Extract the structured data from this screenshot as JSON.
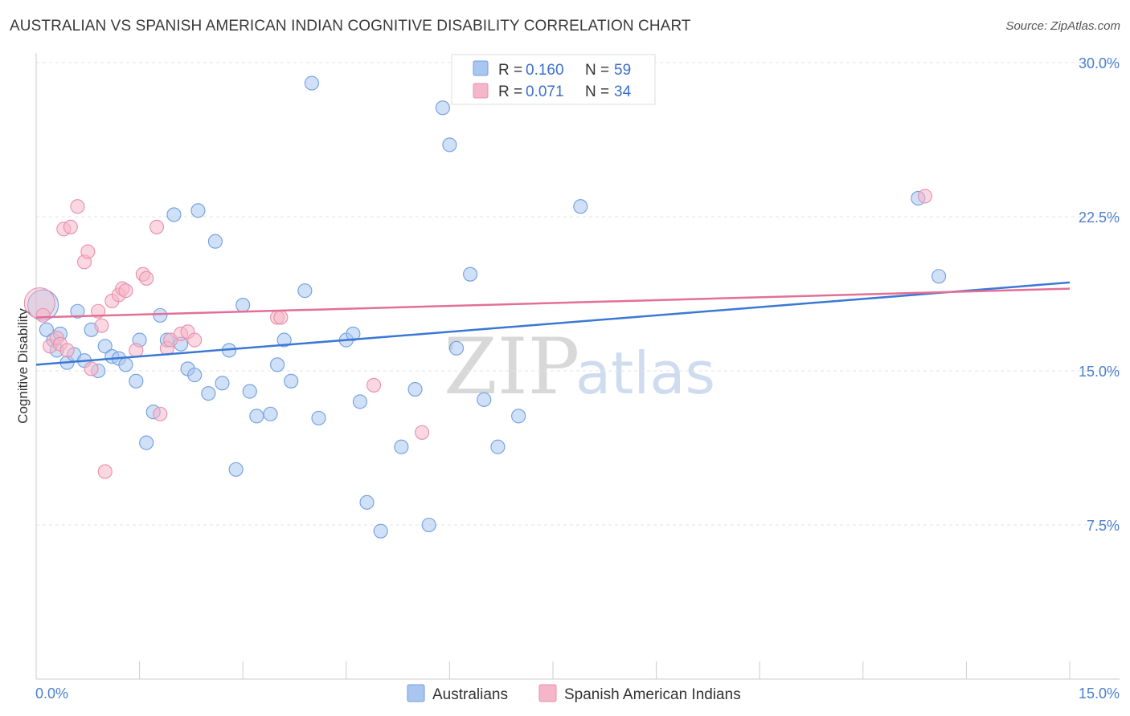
{
  "title": "AUSTRALIAN VS SPANISH AMERICAN INDIAN COGNITIVE DISABILITY CORRELATION CHART",
  "source": "Source: ZipAtlas.com",
  "watermark": {
    "zip": "ZIP",
    "atlas": "atlas"
  },
  "legend": {
    "rows": [
      {
        "r_label": "R = ",
        "r_value": "0.160",
        "n_label": "N = ",
        "n_value": "59",
        "color": "#a9c6f0"
      },
      {
        "r_label": "R = ",
        "r_value": "0.071",
        "n_label": "N = ",
        "n_value": "34",
        "color": "#f5b6c9"
      }
    ]
  },
  "bottom_legend": [
    "Australians",
    "Spanish American Indians"
  ],
  "chart_data": {
    "type": "scatter",
    "title": "AUSTRALIAN VS SPANISH AMERICAN INDIAN COGNITIVE DISABILITY CORRELATION CHART",
    "xlabel": "",
    "ylabel": "Cognitive Disability",
    "xlim": [
      0,
      15
    ],
    "ylim": [
      0,
      30
    ],
    "x_tick_labels": [
      "0.0%",
      "15.0%"
    ],
    "y_ticks": [
      7.5,
      15.0,
      22.5,
      30.0
    ],
    "y_tick_labels": [
      "7.5%",
      "15.0%",
      "22.5%",
      "30.0%"
    ],
    "grid": true,
    "legend_position": "top-center",
    "series": [
      {
        "name": "Australians",
        "color": "#a9c6f0",
        "stroke": "#6f9ee0",
        "line_color": "#3b78d4",
        "trend": {
          "x": [
            0,
            15
          ],
          "y": [
            15.3,
            19.3
          ]
        },
        "points": [
          {
            "x": 0.1,
            "y": 18.2,
            "big": true
          },
          {
            "x": 0.15,
            "y": 17.0
          },
          {
            "x": 0.25,
            "y": 16.5
          },
          {
            "x": 0.35,
            "y": 16.8
          },
          {
            "x": 0.45,
            "y": 15.4
          },
          {
            "x": 0.6,
            "y": 17.9
          },
          {
            "x": 0.8,
            "y": 17.0
          },
          {
            "x": 0.9,
            "y": 15.0
          },
          {
            "x": 1.0,
            "y": 16.2
          },
          {
            "x": 1.1,
            "y": 15.7
          },
          {
            "x": 1.2,
            "y": 15.6
          },
          {
            "x": 1.3,
            "y": 15.3
          },
          {
            "x": 1.45,
            "y": 14.5
          },
          {
            "x": 1.5,
            "y": 16.5
          },
          {
            "x": 1.6,
            "y": 11.5
          },
          {
            "x": 1.8,
            "y": 17.7
          },
          {
            "x": 1.9,
            "y": 16.5
          },
          {
            "x": 2.0,
            "y": 22.6
          },
          {
            "x": 2.1,
            "y": 16.3
          },
          {
            "x": 2.2,
            "y": 15.1
          },
          {
            "x": 2.3,
            "y": 14.8
          },
          {
            "x": 2.35,
            "y": 22.8
          },
          {
            "x": 2.5,
            "y": 13.9
          },
          {
            "x": 2.6,
            "y": 21.3
          },
          {
            "x": 2.7,
            "y": 14.4
          },
          {
            "x": 2.8,
            "y": 16.0
          },
          {
            "x": 2.9,
            "y": 10.2
          },
          {
            "x": 3.0,
            "y": 18.2
          },
          {
            "x": 3.1,
            "y": 14.0
          },
          {
            "x": 3.2,
            "y": 12.8
          },
          {
            "x": 3.4,
            "y": 12.9
          },
          {
            "x": 3.5,
            "y": 15.3
          },
          {
            "x": 3.6,
            "y": 16.5
          },
          {
            "x": 3.7,
            "y": 14.5
          },
          {
            "x": 3.9,
            "y": 18.9
          },
          {
            "x": 4.0,
            "y": 29.0
          },
          {
            "x": 4.1,
            "y": 12.7
          },
          {
            "x": 4.5,
            "y": 16.5
          },
          {
            "x": 4.6,
            "y": 16.8
          },
          {
            "x": 4.7,
            "y": 13.5
          },
          {
            "x": 4.8,
            "y": 8.6
          },
          {
            "x": 5.0,
            "y": 7.2
          },
          {
            "x": 5.3,
            "y": 11.3
          },
          {
            "x": 5.5,
            "y": 14.1
          },
          {
            "x": 5.7,
            "y": 7.5
          },
          {
            "x": 5.9,
            "y": 27.8
          },
          {
            "x": 6.0,
            "y": 26.0
          },
          {
            "x": 6.1,
            "y": 16.1
          },
          {
            "x": 6.3,
            "y": 19.7
          },
          {
            "x": 6.5,
            "y": 13.6
          },
          {
            "x": 6.7,
            "y": 11.3
          },
          {
            "x": 7.0,
            "y": 12.8
          },
          {
            "x": 7.9,
            "y": 23.0
          },
          {
            "x": 12.8,
            "y": 23.4
          },
          {
            "x": 13.1,
            "y": 19.6
          },
          {
            "x": 0.55,
            "y": 15.8
          },
          {
            "x": 1.7,
            "y": 13.0
          },
          {
            "x": 0.3,
            "y": 16.0
          },
          {
            "x": 0.7,
            "y": 15.5
          }
        ]
      },
      {
        "name": "Spanish American Indians",
        "color": "#f5b6c9",
        "stroke": "#e98fab",
        "line_color": "#e36f96",
        "trend": {
          "x": [
            0,
            15
          ],
          "y": [
            17.6,
            19.0
          ]
        },
        "points": [
          {
            "x": 0.05,
            "y": 18.3,
            "big": true
          },
          {
            "x": 0.1,
            "y": 17.7
          },
          {
            "x": 0.2,
            "y": 16.2
          },
          {
            "x": 0.3,
            "y": 16.6
          },
          {
            "x": 0.35,
            "y": 16.3
          },
          {
            "x": 0.4,
            "y": 21.9
          },
          {
            "x": 0.45,
            "y": 16.0
          },
          {
            "x": 0.5,
            "y": 22.0
          },
          {
            "x": 0.6,
            "y": 23.0
          },
          {
            "x": 0.7,
            "y": 20.3
          },
          {
            "x": 0.75,
            "y": 20.8
          },
          {
            "x": 0.8,
            "y": 15.1
          },
          {
            "x": 0.9,
            "y": 17.9
          },
          {
            "x": 0.95,
            "y": 17.2
          },
          {
            "x": 1.0,
            "y": 10.1
          },
          {
            "x": 1.1,
            "y": 18.4
          },
          {
            "x": 1.2,
            "y": 18.7
          },
          {
            "x": 1.25,
            "y": 19.0
          },
          {
            "x": 1.3,
            "y": 18.9
          },
          {
            "x": 1.45,
            "y": 16.0
          },
          {
            "x": 1.55,
            "y": 19.7
          },
          {
            "x": 1.6,
            "y": 19.5
          },
          {
            "x": 1.75,
            "y": 22.0
          },
          {
            "x": 1.8,
            "y": 12.9
          },
          {
            "x": 1.9,
            "y": 16.1
          },
          {
            "x": 1.95,
            "y": 16.5
          },
          {
            "x": 2.1,
            "y": 16.8
          },
          {
            "x": 2.2,
            "y": 16.9
          },
          {
            "x": 2.3,
            "y": 16.5
          },
          {
            "x": 3.5,
            "y": 17.6
          },
          {
            "x": 3.55,
            "y": 17.6
          },
          {
            "x": 4.9,
            "y": 14.3
          },
          {
            "x": 5.6,
            "y": 12.0
          },
          {
            "x": 12.9,
            "y": 23.5
          }
        ]
      }
    ]
  }
}
